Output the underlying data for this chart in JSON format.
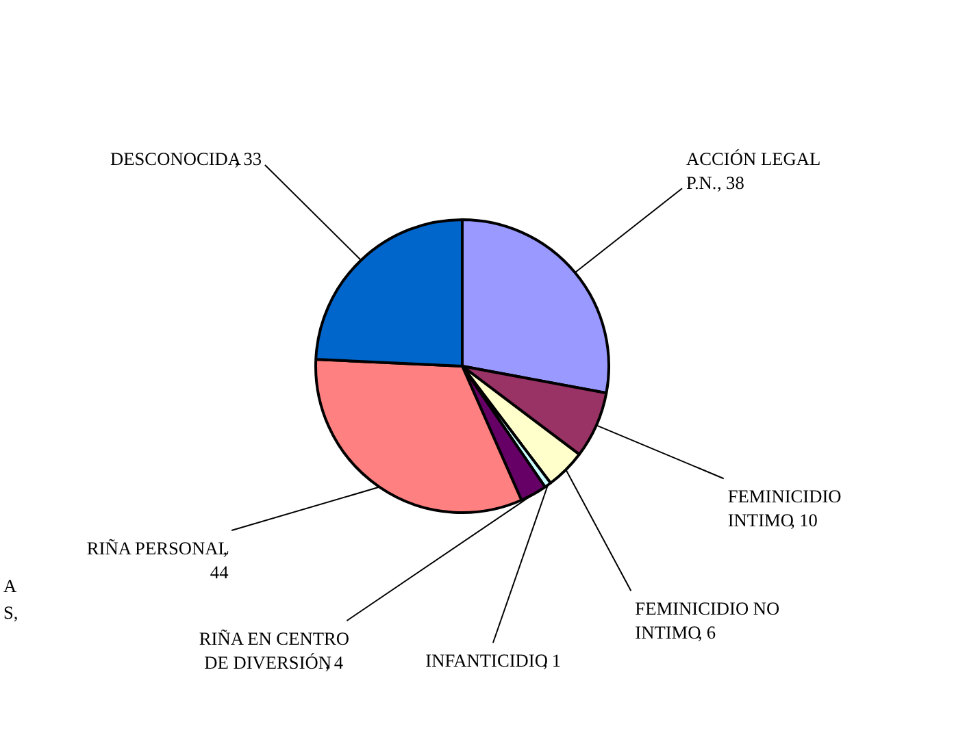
{
  "chart_data": {
    "type": "pie",
    "categories": [
      "ACCIÓN LEGAL P.N.",
      "FEMINICIDIO INTIMO",
      "FEMINICIDIO NO INTIMO",
      "INFANTICIDIO",
      "RIÑA EN CENTRO DE DIVERSIÓN",
      "RIÑA PERSONAL",
      "DESCONOCIDA"
    ],
    "values": [
      38,
      10,
      6,
      1,
      4,
      44,
      33
    ],
    "colors": [
      "#9999ff",
      "#993366",
      "#ffffcc",
      "#ccffff",
      "#660066",
      "#ff8080",
      "#0066cc"
    ],
    "value_labels": [
      ", 38",
      ", 10",
      ", 6",
      ", 1",
      ", 4",
      ", 44",
      ", 33"
    ],
    "annotations": [
      "A\nS,"
    ]
  }
}
